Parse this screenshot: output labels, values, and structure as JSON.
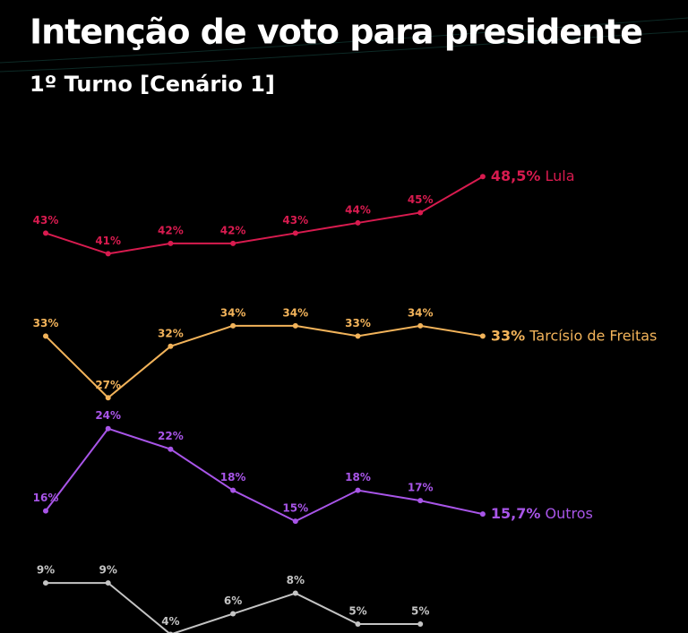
{
  "chart_data": {
    "type": "line",
    "title": "Intenção de voto para presidente",
    "subtitle": "1º Turno [Cenário 1]",
    "categories": [
      null,
      null,
      null,
      null,
      null,
      null,
      null,
      null
    ],
    "ylim": [
      3,
      50
    ],
    "series": [
      {
        "name": "Lula",
        "color": "#d81b4f",
        "values": [
          43,
          41,
          42,
          42,
          43,
          44,
          45,
          48.5
        ],
        "value_labels": [
          "43%",
          "41%",
          "42%",
          "42%",
          "43%",
          "44%",
          "45%",
          "48,5%"
        ]
      },
      {
        "name": "Tarcísio de Freitas",
        "color": "#f2b35a",
        "values": [
          33,
          27,
          32,
          34,
          34,
          33,
          34,
          33
        ],
        "value_labels": [
          "33%",
          "27%",
          "32%",
          "34%",
          "34%",
          "33%",
          "34%",
          "33%"
        ]
      },
      {
        "name": "Outros",
        "color": "#a855e8",
        "values": [
          16,
          24,
          22,
          18,
          15,
          18,
          17,
          15.7
        ],
        "value_labels": [
          "16%",
          "24%",
          "22%",
          "18%",
          "15%",
          "18%",
          "17%",
          "15,7%"
        ]
      },
      {
        "color": "#c4c4c4",
        "values": [
          9,
          9,
          4,
          6,
          8,
          5,
          5,
          null
        ],
        "value_labels": [
          "9%",
          "9%",
          "4%",
          "6%",
          "8%",
          "5%",
          "5%",
          null
        ]
      }
    ]
  }
}
